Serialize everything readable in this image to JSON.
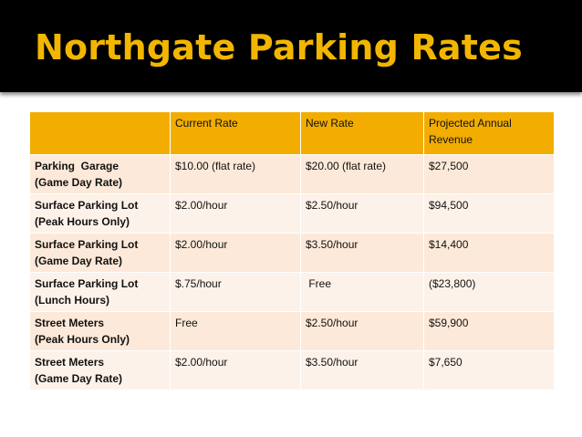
{
  "title": "Northgate Parking Rates",
  "table": {
    "headers": [
      "",
      "Current Rate",
      "New Rate",
      "Projected Annual Revenue"
    ],
    "rows": [
      {
        "line1": "Parking  Garage",
        "line2": "(Game Day Rate)",
        "current": "$10.00 (flat rate)",
        "new": "$20.00 (flat rate)",
        "revenue": "$27,500"
      },
      {
        "line1": "Surface Parking Lot",
        "line2": "(Peak Hours Only)",
        "current": "$2.00/hour",
        "new": "$2.50/hour",
        "revenue": "$94,500"
      },
      {
        "line1": "Surface Parking Lot",
        "line2": "(Game Day Rate)",
        "current": "$2.00/hour",
        "new": "$3.50/hour",
        "revenue": "$14,400"
      },
      {
        "line1": "Surface Parking Lot",
        "line2": "(Lunch Hours)",
        "current": "$.75/hour",
        "new": " Free",
        "revenue": "($23,800)"
      },
      {
        "line1": "Street Meters",
        "line2": "(Peak Hours Only)",
        "current": "Free",
        "new": "$2.50/hour",
        "revenue": "$59,900"
      },
      {
        "line1": "Street Meters",
        "line2": "(Game Day Rate)",
        "current": "$2.00/hour",
        "new": "$3.50/hour",
        "revenue": "$7,650"
      }
    ]
  },
  "colors": {
    "title_bar": "#000000",
    "title_text": "#f2b600",
    "header_fill": "#f2ad00",
    "row_fill_odd": "#fde9d9",
    "row_fill_even": "#fdf2ea"
  }
}
